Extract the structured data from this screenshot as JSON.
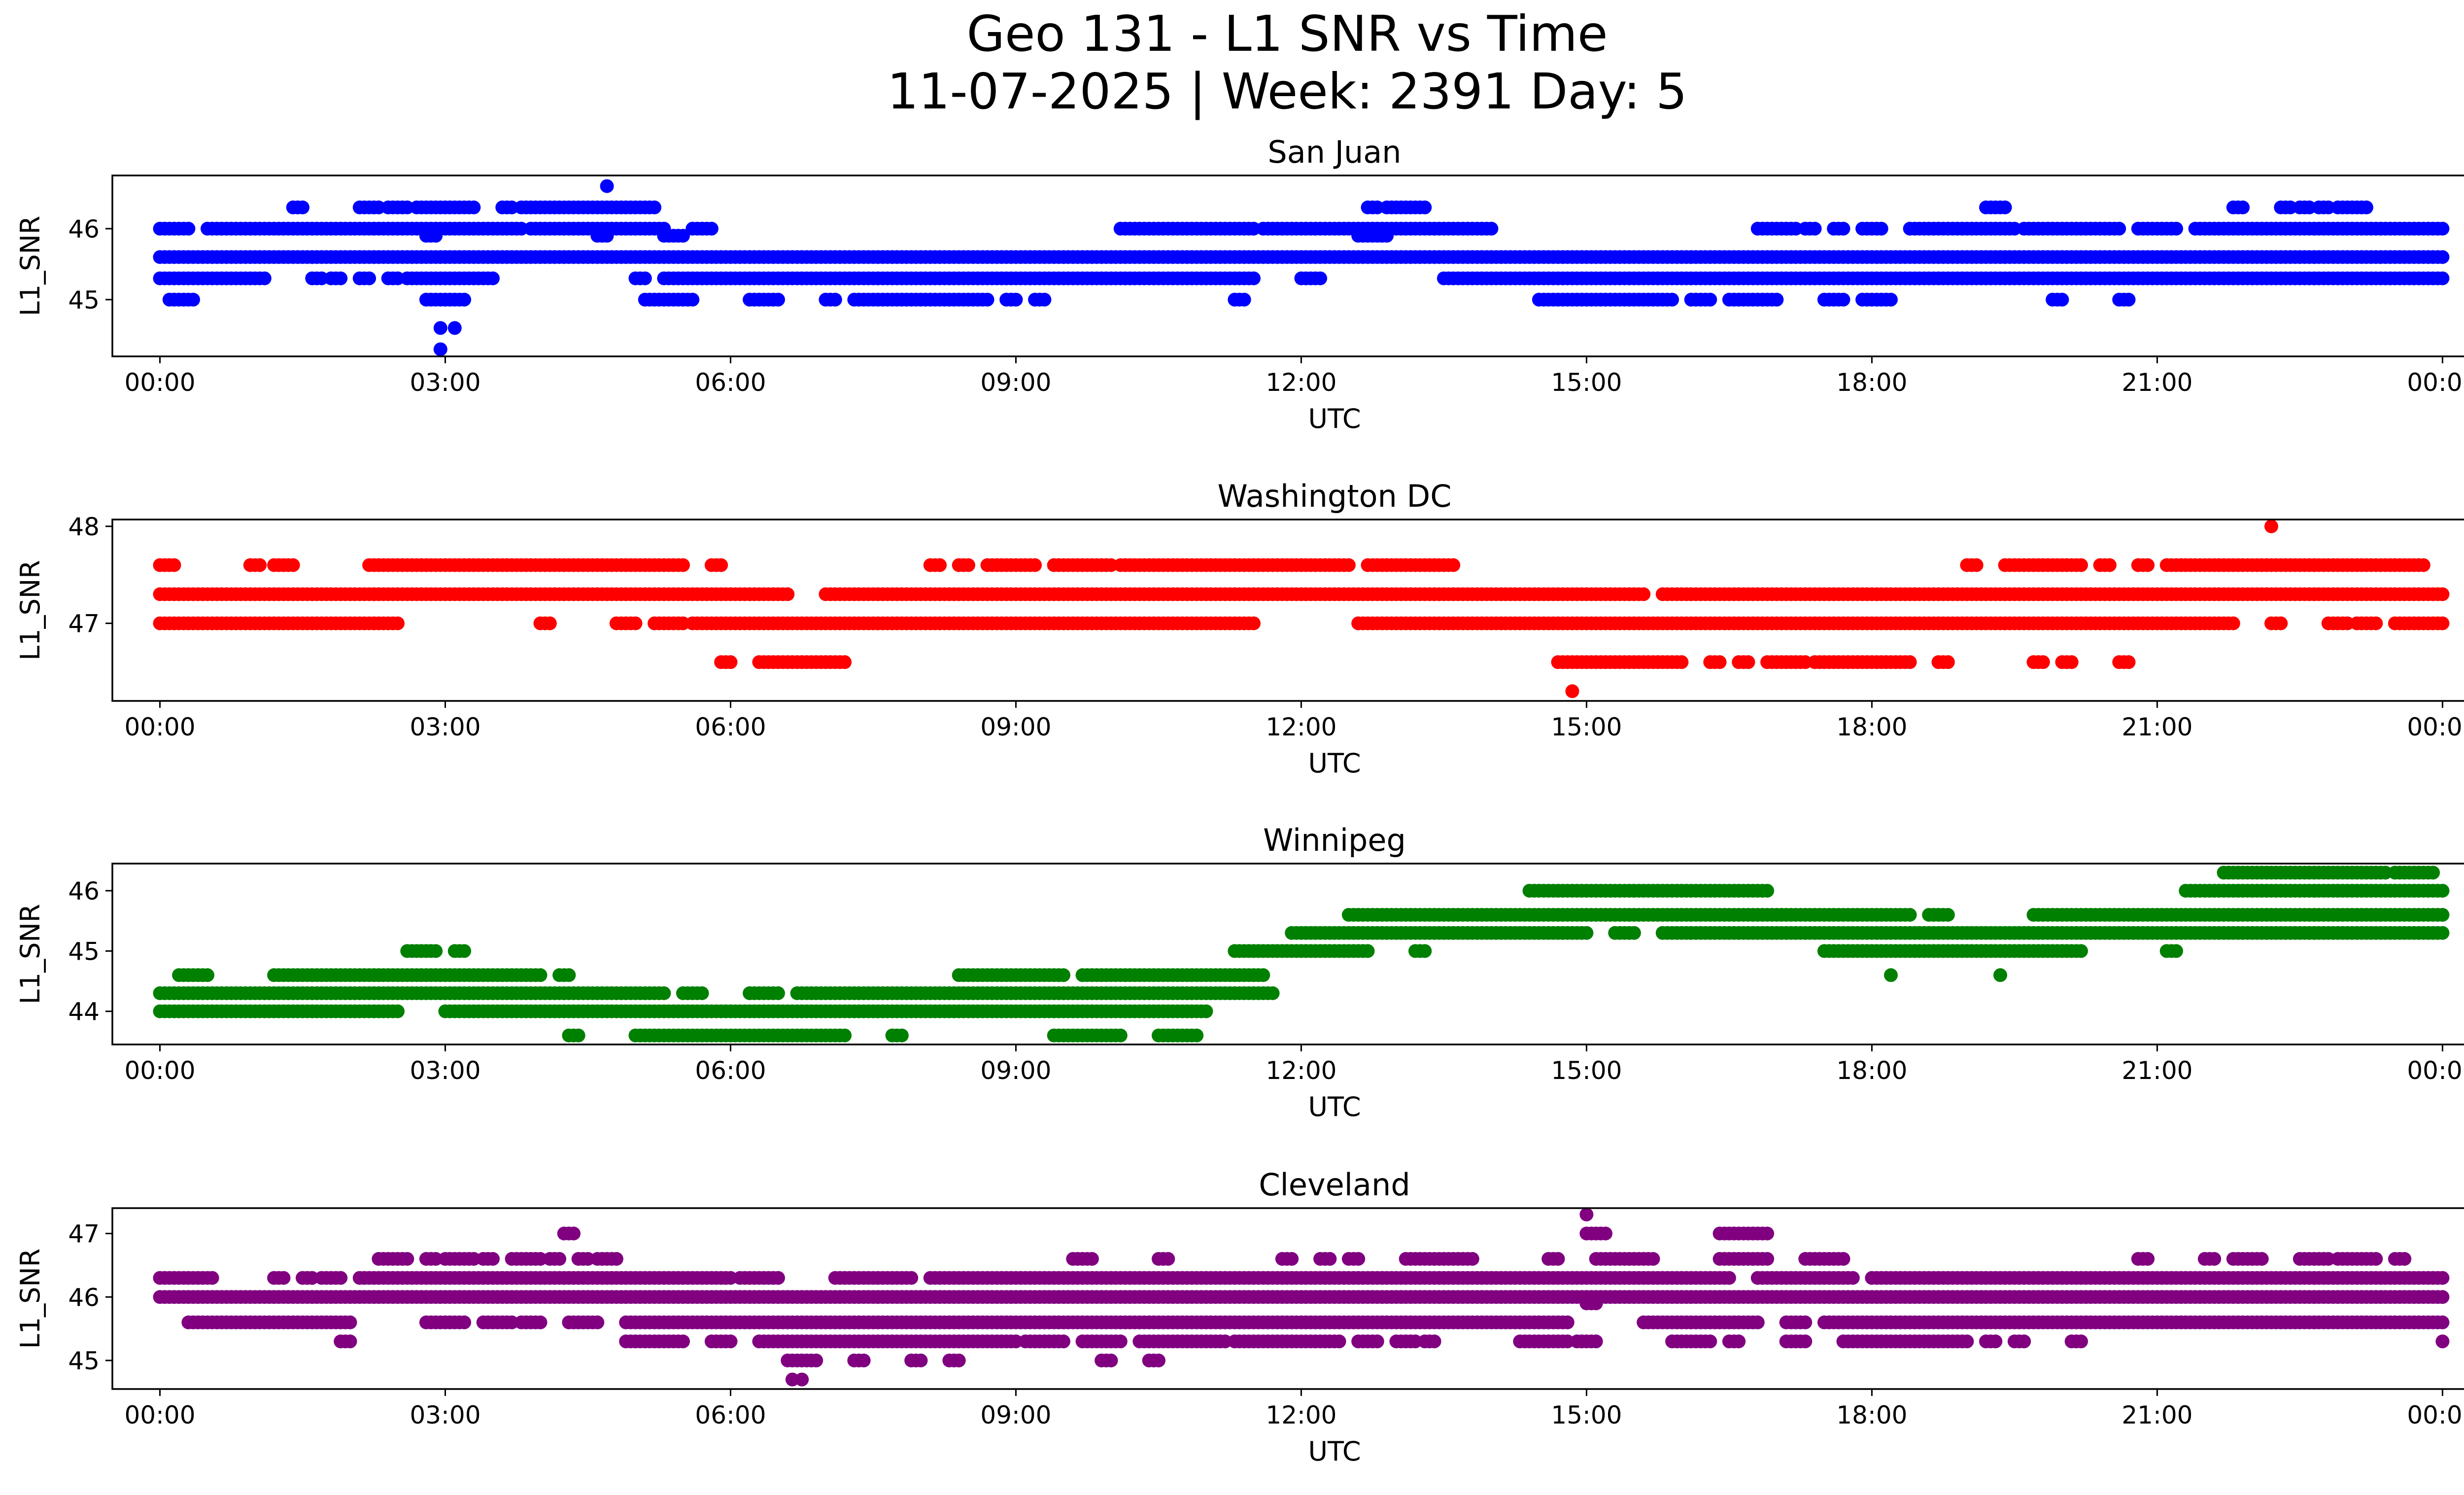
{
  "figure": {
    "title_line1": "Geo 131 - L1 SNR vs Time",
    "title_line2": "11-07-2025 | Week: 2391 Day: 5"
  },
  "chart_data": [
    {
      "type": "scatter",
      "title": "San Juan",
      "xlabel": "UTC",
      "ylabel": "L1_SNR",
      "color": "#0000ff",
      "xlim": [
        -0.5,
        25.2
      ],
      "ylim": [
        44.2,
        46.75
      ],
      "xticks": [
        0,
        3,
        6,
        9,
        12,
        15,
        18,
        21,
        24
      ],
      "xtick_labels": [
        "00:00",
        "03:00",
        "06:00",
        "09:00",
        "12:00",
        "15:00",
        "18:00",
        "21:00",
        "00:00"
      ],
      "yticks": [
        45,
        46
      ],
      "ytick_labels": [
        "45",
        "46"
      ],
      "bands": [
        {
          "y": 45.6,
          "segments": [
            [
              0.0,
              24.0
            ]
          ]
        },
        {
          "y": 46.0,
          "segments": [
            [
              0.0,
              0.3
            ],
            [
              0.5,
              3.8
            ],
            [
              3.9,
              5.3
            ],
            [
              5.6,
              5.8
            ],
            [
              10.1,
              11.5
            ],
            [
              11.6,
              14.0
            ],
            [
              16.8,
              17.2
            ],
            [
              17.3,
              17.4
            ],
            [
              17.6,
              17.7
            ],
            [
              17.9,
              18.1
            ],
            [
              18.4,
              19.5
            ],
            [
              19.6,
              20.6
            ],
            [
              20.8,
              21.2
            ],
            [
              21.4,
              24.0
            ]
          ]
        },
        {
          "y": 45.3,
          "segments": [
            [
              0.0,
              1.1
            ],
            [
              1.6,
              1.7
            ],
            [
              1.8,
              1.9
            ],
            [
              2.1,
              2.2
            ],
            [
              2.4,
              2.5
            ],
            [
              2.6,
              3.5
            ],
            [
              5.0,
              5.1
            ],
            [
              5.3,
              11.5
            ],
            [
              12.0,
              12.2
            ],
            [
              13.5,
              24.0
            ]
          ]
        },
        {
          "y": 45.0,
          "segments": [
            [
              0.1,
              0.35
            ],
            [
              2.8,
              3.2
            ],
            [
              5.1,
              5.6
            ],
            [
              6.2,
              6.5
            ],
            [
              7.0,
              7.1
            ],
            [
              7.3,
              8.7
            ],
            [
              8.9,
              9.0
            ],
            [
              9.2,
              9.3
            ],
            [
              11.3,
              11.4
            ],
            [
              14.5,
              15.9
            ],
            [
              16.1,
              16.3
            ],
            [
              16.5,
              17.0
            ],
            [
              17.5,
              17.7
            ],
            [
              17.9,
              18.2
            ],
            [
              19.9,
              20.0
            ],
            [
              20.6,
              20.7
            ]
          ]
        },
        {
          "y": 46.3,
          "segments": [
            [
              1.4,
              1.5
            ],
            [
              2.1,
              2.3
            ],
            [
              2.4,
              2.6
            ],
            [
              2.7,
              3.3
            ],
            [
              3.6,
              3.7
            ],
            [
              3.8,
              5.2
            ],
            [
              12.7,
              12.8
            ],
            [
              12.9,
              13.3
            ],
            [
              19.2,
              19.4
            ],
            [
              21.8,
              21.9
            ],
            [
              22.3,
              22.4
            ],
            [
              22.5,
              22.6
            ],
            [
              22.7,
              22.8
            ],
            [
              22.9,
              23.2
            ]
          ]
        },
        {
          "y": 45.9,
          "segments": [
            [
              2.8,
              2.9
            ],
            [
              4.6,
              4.7
            ],
            [
              5.3,
              5.5
            ],
            [
              12.6,
              12.9
            ]
          ]
        }
      ],
      "points": [
        {
          "x": 2.95,
          "y": 44.6
        },
        {
          "x": 3.1,
          "y": 44.6
        },
        {
          "x": 2.95,
          "y": 44.3
        },
        {
          "x": 4.7,
          "y": 46.6
        }
      ]
    },
    {
      "type": "scatter",
      "title": "Washington DC",
      "xlabel": "UTC",
      "ylabel": "L1_SNR",
      "color": "#ff0000",
      "xlim": [
        -0.5,
        25.2
      ],
      "ylim": [
        46.2,
        48.07
      ],
      "xticks": [
        0,
        3,
        6,
        9,
        12,
        15,
        18,
        21,
        24
      ],
      "xtick_labels": [
        "00:00",
        "03:00",
        "06:00",
        "09:00",
        "12:00",
        "15:00",
        "18:00",
        "21:00",
        "00:00"
      ],
      "yticks": [
        47,
        48
      ],
      "ytick_labels": [
        "47",
        "48"
      ],
      "bands": [
        {
          "y": 47.3,
          "segments": [
            [
              0.0,
              6.6
            ],
            [
              7.0,
              15.6
            ],
            [
              15.8,
              24.0
            ]
          ]
        },
        {
          "y": 47.0,
          "segments": [
            [
              0.0,
              2.5
            ],
            [
              4.0,
              4.1
            ],
            [
              4.8,
              5.0
            ],
            [
              5.2,
              5.5
            ],
            [
              5.6,
              11.5
            ],
            [
              12.6,
              21.8
            ],
            [
              22.2,
              22.3
            ],
            [
              22.8,
              23.0
            ],
            [
              23.1,
              23.3
            ],
            [
              23.5,
              24.0
            ]
          ]
        },
        {
          "y": 47.6,
          "segments": [
            [
              0.0,
              0.15
            ],
            [
              0.95,
              1.05
            ],
            [
              1.2,
              1.4
            ],
            [
              2.2,
              5.5
            ],
            [
              5.8,
              5.9
            ],
            [
              8.1,
              8.2
            ],
            [
              8.4,
              8.5
            ],
            [
              8.7,
              9.2
            ],
            [
              9.4,
              10.0
            ],
            [
              10.1,
              12.5
            ],
            [
              12.7,
              13.6
            ],
            [
              19.0,
              19.1
            ],
            [
              19.4,
              20.2
            ],
            [
              20.4,
              20.5
            ],
            [
              20.8,
              20.9
            ],
            [
              21.1,
              23.8
            ]
          ]
        },
        {
          "y": 46.6,
          "segments": [
            [
              5.9,
              6.0
            ],
            [
              6.3,
              7.2
            ],
            [
              14.7,
              16.0
            ],
            [
              16.3,
              16.4
            ],
            [
              16.6,
              16.7
            ],
            [
              16.9,
              17.3
            ],
            [
              17.4,
              18.4
            ],
            [
              18.7,
              18.8
            ],
            [
              19.7,
              19.8
            ],
            [
              20.0,
              20.1
            ],
            [
              20.6,
              20.7
            ]
          ]
        }
      ],
      "points": [
        {
          "x": 14.85,
          "y": 46.3
        },
        {
          "x": 22.2,
          "y": 48.0
        }
      ]
    },
    {
      "type": "scatter",
      "title": "Winnipeg",
      "xlabel": "UTC",
      "ylabel": "L1_SNR",
      "color": "#008000",
      "xlim": [
        -0.5,
        25.2
      ],
      "ylim": [
        43.45,
        46.45
      ],
      "xticks": [
        0,
        3,
        6,
        9,
        12,
        15,
        18,
        21,
        24
      ],
      "xtick_labels": [
        "00:00",
        "03:00",
        "06:00",
        "09:00",
        "12:00",
        "15:00",
        "18:00",
        "21:00",
        "00:00"
      ],
      "yticks": [
        44,
        45,
        46
      ],
      "ytick_labels": [
        "44",
        "45",
        "46"
      ],
      "bands": [
        {
          "y": 44.3,
          "segments": [
            [
              0.0,
              5.3
            ],
            [
              5.5,
              5.7
            ],
            [
              6.2,
              6.5
            ],
            [
              6.7,
              11.7
            ]
          ]
        },
        {
          "y": 44.0,
          "segments": [
            [
              0.0,
              2.5
            ],
            [
              3.0,
              11.0
            ]
          ]
        },
        {
          "y": 44.6,
          "segments": [
            [
              0.2,
              0.5
            ],
            [
              1.2,
              4.0
            ],
            [
              4.2,
              4.3
            ],
            [
              8.4,
              9.5
            ],
            [
              9.7,
              11.6
            ]
          ]
        },
        {
          "y": 43.6,
          "segments": [
            [
              4.3,
              4.4
            ],
            [
              5.0,
              7.2
            ],
            [
              7.7,
              7.8
            ],
            [
              9.4,
              10.1
            ],
            [
              10.5,
              10.9
            ]
          ]
        },
        {
          "y": 45.0,
          "segments": [
            [
              2.6,
              2.9
            ],
            [
              3.1,
              3.2
            ],
            [
              11.3,
              12.7
            ],
            [
              13.2,
              13.3
            ],
            [
              17.5,
              20.2
            ],
            [
              21.1,
              21.2
            ]
          ]
        },
        {
          "y": 45.3,
          "segments": [
            [
              11.9,
              15.0
            ],
            [
              15.3,
              15.5
            ],
            [
              15.8,
              24.0
            ]
          ]
        },
        {
          "y": 45.6,
          "segments": [
            [
              12.5,
              18.4
            ],
            [
              18.6,
              18.8
            ],
            [
              19.7,
              24.0
            ]
          ]
        },
        {
          "y": 46.0,
          "segments": [
            [
              14.4,
              16.9
            ],
            [
              21.3,
              24.0
            ]
          ]
        },
        {
          "y": 46.3,
          "segments": [
            [
              21.7,
              23.4
            ],
            [
              23.5,
              23.9
            ]
          ]
        }
      ],
      "points": [
        {
          "x": 18.2,
          "y": 44.6
        },
        {
          "x": 19.35,
          "y": 44.6
        }
      ]
    },
    {
      "type": "scatter",
      "title": "Cleveland",
      "xlabel": "UTC",
      "ylabel": "L1_SNR",
      "color": "#800080",
      "xlim": [
        -0.5,
        25.2
      ],
      "ylim": [
        44.55,
        47.4
      ],
      "xticks": [
        0,
        3,
        6,
        9,
        12,
        15,
        18,
        21,
        24
      ],
      "xtick_labels": [
        "00:00",
        "03:00",
        "06:00",
        "09:00",
        "12:00",
        "15:00",
        "18:00",
        "21:00",
        "00:00"
      ],
      "yticks": [
        45,
        46,
        47
      ],
      "ytick_labels": [
        "45",
        "46",
        "47"
      ],
      "bands": [
        {
          "y": 46.0,
          "segments": [
            [
              0.0,
              24.0
            ]
          ]
        },
        {
          "y": 46.3,
          "segments": [
            [
              0.0,
              0.55
            ],
            [
              1.2,
              1.3
            ],
            [
              1.5,
              1.6
            ],
            [
              1.7,
              1.9
            ],
            [
              2.1,
              6.0
            ],
            [
              6.1,
              6.5
            ],
            [
              7.1,
              7.9
            ],
            [
              8.1,
              16.5
            ],
            [
              16.8,
              17.8
            ],
            [
              18.0,
              24.0
            ]
          ]
        },
        {
          "y": 45.6,
          "segments": [
            [
              0.3,
              2.0
            ],
            [
              2.8,
              3.2
            ],
            [
              3.4,
              3.7
            ],
            [
              3.8,
              4.0
            ],
            [
              4.3,
              4.6
            ],
            [
              4.9,
              14.8
            ],
            [
              15.6,
              16.8
            ],
            [
              17.1,
              17.3
            ],
            [
              17.5,
              24.0
            ]
          ]
        },
        {
          "y": 45.3,
          "segments": [
            [
              1.9,
              2.0
            ],
            [
              4.9,
              5.5
            ],
            [
              5.8,
              6.0
            ],
            [
              6.3,
              9.0
            ],
            [
              9.1,
              9.5
            ],
            [
              9.7,
              10.1
            ],
            [
              10.3,
              11.2
            ],
            [
              11.3,
              12.4
            ],
            [
              12.6,
              12.8
            ],
            [
              13.0,
              13.2
            ],
            [
              13.3,
              13.4
            ],
            [
              14.3,
              14.8
            ],
            [
              14.9,
              15.1
            ],
            [
              15.9,
              16.3
            ],
            [
              16.5,
              16.6
            ],
            [
              17.1,
              17.3
            ],
            [
              17.7,
              19.0
            ],
            [
              19.2,
              19.3
            ],
            [
              19.5,
              19.6
            ],
            [
              20.1,
              20.2
            ]
          ]
        },
        {
          "y": 46.6,
          "segments": [
            [
              2.3,
              2.6
            ],
            [
              2.8,
              2.9
            ],
            [
              3.0,
              3.3
            ],
            [
              3.4,
              3.5
            ],
            [
              3.7,
              4.0
            ],
            [
              4.1,
              4.2
            ],
            [
              4.4,
              4.5
            ],
            [
              4.6,
              4.8
            ],
            [
              9.6,
              9.8
            ],
            [
              10.5,
              10.6
            ],
            [
              11.8,
              11.9
            ],
            [
              12.2,
              12.3
            ],
            [
              12.5,
              12.6
            ],
            [
              13.1,
              13.8
            ],
            [
              14.6,
              14.7
            ],
            [
              15.1,
              15.7
            ],
            [
              16.4,
              16.9
            ],
            [
              17.3,
              17.7
            ],
            [
              20.8,
              20.9
            ],
            [
              21.5,
              21.6
            ],
            [
              21.8,
              22.1
            ],
            [
              22.5,
              22.8
            ],
            [
              22.9,
              23.3
            ],
            [
              23.5,
              23.6
            ]
          ]
        },
        {
          "y": 45.0,
          "segments": [
            [
              6.6,
              6.9
            ],
            [
              7.3,
              7.4
            ],
            [
              7.9,
              8.0
            ],
            [
              8.3,
              8.4
            ],
            [
              9.9,
              10.0
            ],
            [
              10.4,
              10.5
            ]
          ]
        },
        {
          "y": 47.0,
          "segments": [
            [
              4.25,
              4.35
            ],
            [
              15.0,
              15.2
            ],
            [
              16.4,
              16.9
            ]
          ]
        },
        {
          "y": 45.9,
          "segments": [
            [
              15.0,
              15.1
            ]
          ]
        }
      ],
      "points": [
        {
          "x": 15.0,
          "y": 47.3
        },
        {
          "x": 6.65,
          "y": 44.7
        },
        {
          "x": 6.75,
          "y": 44.7
        },
        {
          "x": 24.0,
          "y": 45.3
        }
      ]
    }
  ]
}
